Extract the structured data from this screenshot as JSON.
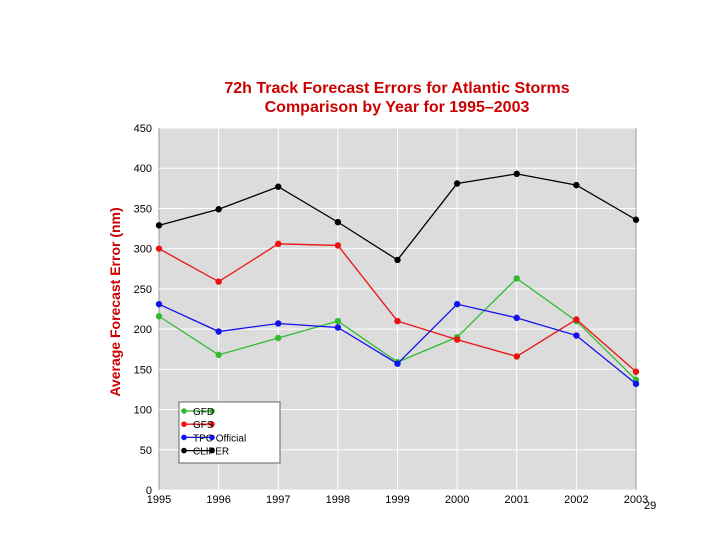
{
  "chart_data": {
    "type": "line",
    "title": "72h Track Forecast Errors for Atlantic Storms",
    "subtitle": "Comparison by Year for 1995–2003",
    "xlabel": "",
    "ylabel": "Average Forecast Error (nm)",
    "categories": [
      "1995",
      "1996",
      "1997",
      "1998",
      "1999",
      "2000",
      "2001",
      "2002",
      "2003"
    ],
    "yticks": [
      "0",
      "50",
      "100",
      "150",
      "200",
      "250",
      "300",
      "350",
      "400",
      "450"
    ],
    "ylim": [
      0,
      450
    ],
    "grid": true,
    "legend_position": "bottom-left",
    "series": [
      {
        "name": "GFD",
        "color": "#33bb33",
        "values": [
          216,
          168,
          189,
          210,
          159,
          190,
          263,
          210,
          137
        ]
      },
      {
        "name": "GFS",
        "color": "#ee1111",
        "values": [
          300,
          259,
          306,
          304,
          210,
          187,
          166,
          212,
          147
        ]
      },
      {
        "name": "TPC Official",
        "color": "#1111ee",
        "values": [
          231,
          197,
          207,
          202,
          157,
          231,
          214,
          192,
          132
        ]
      },
      {
        "name": "CLIPER",
        "color": "#000000",
        "values": [
          329,
          349,
          377,
          333,
          286,
          381,
          393,
          379,
          336
        ]
      }
    ]
  },
  "page_number": "29"
}
